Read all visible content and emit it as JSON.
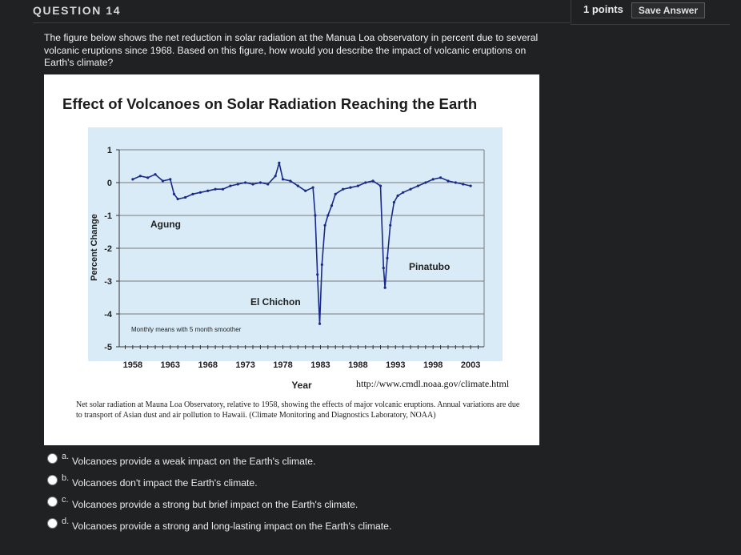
{
  "question": {
    "title": "QUESTION 14",
    "points": "1 points",
    "save_label": "Save Answer",
    "prompt": "The figure below shows the net reduction in solar radiation at the Manua Loa observatory in percent due to several volcanic eruptions since 1968.  Based on this figure, how would you describe the impact of volcanic eruptions on Earth's climate?"
  },
  "figure": {
    "credit": "http://www.cmdl.noaa.gov/climate.html",
    "caption": "Net solar radiation at Mauna Loa Observatory, relative to 1958, showing the effects of major volcanic eruptions. Annual variations are due to transport of Asian dust and air pollution to Hawaii. (Climate Monitoring and Diagnostics Laboratory, NOAA)"
  },
  "chart_data": {
    "type": "line",
    "title": "Effect of Volcanoes on Solar Radiation Reaching the Earth",
    "xlabel": "Year",
    "ylabel": "Percent Change",
    "xlim": [
      1956,
      2005
    ],
    "ylim": [
      -5,
      1
    ],
    "x_ticks": [
      "1958",
      "1963",
      "1968",
      "1973",
      "1978",
      "1983",
      "1988",
      "1993",
      "1998",
      "2003"
    ],
    "y_ticks": [
      "1",
      "0",
      "-1",
      "-2",
      "-3",
      "-4",
      "-5"
    ],
    "grid": true,
    "plot_background": "#d8ebf7",
    "series": [
      {
        "color": "#1a2a8a",
        "x": [
          1958,
          1959,
          1960,
          1961,
          1962,
          1963,
          1963.5,
          1964,
          1965,
          1966,
          1967,
          1968,
          1969,
          1970,
          1971,
          1972,
          1973,
          1974,
          1975,
          1976,
          1977,
          1977.5,
          1978,
          1979,
          1980,
          1981,
          1982,
          1982.3,
          1982.6,
          1982.9,
          1983.2,
          1983.6,
          1984,
          1984.5,
          1985,
          1986,
          1987,
          1988,
          1989,
          1990,
          1991,
          1991.4,
          1991.6,
          1991.9,
          1992.3,
          1992.8,
          1993.3,
          1994,
          1995,
          1996,
          1997,
          1998,
          1999,
          2000,
          2001,
          2002,
          2003
        ],
        "values": [
          0.1,
          0.2,
          0.15,
          0.25,
          0.05,
          0.1,
          -0.35,
          -0.5,
          -0.45,
          -0.35,
          -0.3,
          -0.25,
          -0.2,
          -0.2,
          -0.1,
          -0.05,
          0.0,
          -0.05,
          0.0,
          -0.05,
          0.2,
          0.6,
          0.1,
          0.05,
          -0.1,
          -0.25,
          -0.15,
          -1.0,
          -2.8,
          -4.3,
          -2.5,
          -1.3,
          -1.0,
          -0.7,
          -0.35,
          -0.2,
          -0.15,
          -0.1,
          0.0,
          0.05,
          -0.1,
          -2.6,
          -3.2,
          -2.3,
          -1.3,
          -0.6,
          -0.4,
          -0.3,
          -0.2,
          -0.1,
          0.0,
          0.1,
          0.15,
          0.05,
          0.0,
          -0.05,
          -0.1
        ]
      }
    ],
    "annotations": [
      "Agung",
      "El Chichon",
      "Pinatubo",
      "Monthly means with 5 month smoother"
    ]
  },
  "options": [
    {
      "letter": "a.",
      "text": "Volcanoes provide a weak impact on the Earth's climate."
    },
    {
      "letter": "b.",
      "text": "Volcanoes don't impact the Earth's climate."
    },
    {
      "letter": "c.",
      "text": "Volcanoes provide a strong but brief impact on the Earth's climate."
    },
    {
      "letter": "d.",
      "text": "Volcanoes provide a strong and long-lasting impact on the Earth's climate."
    }
  ]
}
